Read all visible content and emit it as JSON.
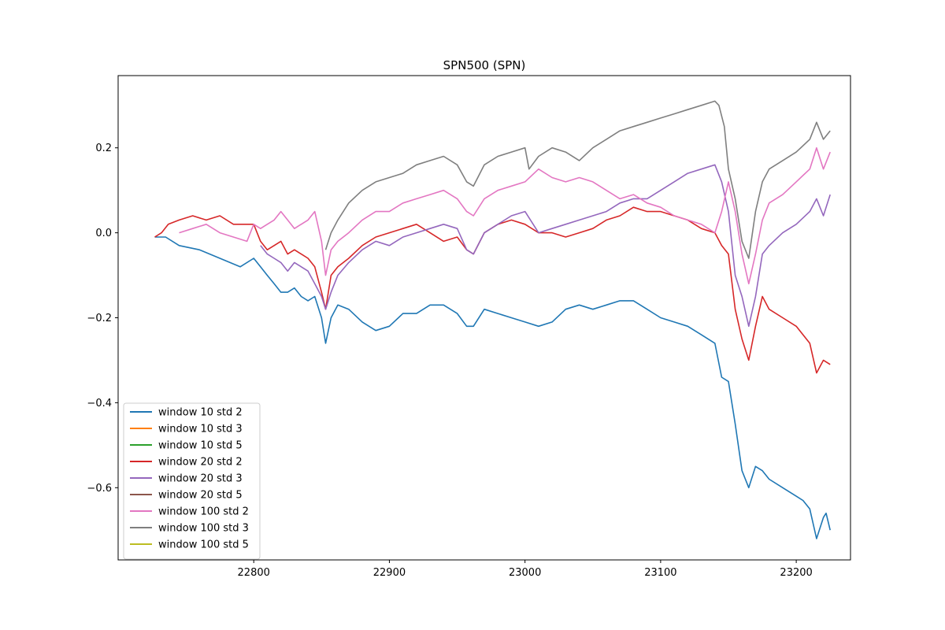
{
  "chart_data": {
    "type": "line",
    "title": "SPN500 (SPN)",
    "xlabel": "",
    "ylabel": "",
    "xlim": [
      22700,
      23240
    ],
    "ylim": [
      -0.77,
      0.37
    ],
    "xticks": [
      22800,
      22900,
      23000,
      23100,
      23200
    ],
    "yticks": [
      -0.6,
      -0.4,
      -0.2,
      0.0,
      0.2
    ],
    "ytick_labels": [
      "−0.6",
      "−0.4",
      "−0.2",
      "0.0",
      "0.2"
    ],
    "grid": false,
    "legend_position": "lower-left",
    "series": [
      {
        "name": "window 10 std 2",
        "color": "#1f77b4",
        "x": [
          22727,
          22735,
          22745,
          22760,
          22775,
          22790,
          22800,
          22805,
          22810,
          22815,
          22820,
          22825,
          22830,
          22835,
          22840,
          22845,
          22850,
          22853,
          22857,
          22862,
          22870,
          22880,
          22890,
          22900,
          22910,
          22920,
          22930,
          22940,
          22950,
          22957,
          22962,
          22970,
          22980,
          22990,
          23000,
          23010,
          23020,
          23030,
          23040,
          23050,
          23060,
          23070,
          23080,
          23090,
          23100,
          23110,
          23120,
          23130,
          23140,
          23145,
          23150,
          23155,
          23160,
          23165,
          23170,
          23175,
          23180,
          23190,
          23200,
          23205,
          23210,
          23215,
          23220,
          23222,
          23225
        ],
        "values": [
          -0.01,
          -0.01,
          -0.03,
          -0.04,
          -0.06,
          -0.08,
          -0.06,
          -0.08,
          -0.1,
          -0.12,
          -0.14,
          -0.14,
          -0.13,
          -0.15,
          -0.16,
          -0.15,
          -0.2,
          -0.26,
          -0.2,
          -0.17,
          -0.18,
          -0.21,
          -0.23,
          -0.22,
          -0.19,
          -0.19,
          -0.17,
          -0.17,
          -0.19,
          -0.22,
          -0.22,
          -0.18,
          -0.19,
          -0.2,
          -0.21,
          -0.22,
          -0.21,
          -0.18,
          -0.17,
          -0.18,
          -0.17,
          -0.16,
          -0.16,
          -0.18,
          -0.2,
          -0.21,
          -0.22,
          -0.24,
          -0.26,
          -0.34,
          -0.35,
          -0.45,
          -0.56,
          -0.6,
          -0.55,
          -0.56,
          -0.58,
          -0.6,
          -0.62,
          -0.63,
          -0.65,
          -0.72,
          -0.67,
          -0.66,
          -0.7
        ]
      },
      {
        "name": "window 10 std 3",
        "color": "#ff7f0e",
        "x": [],
        "values": []
      },
      {
        "name": "window 10 std 5",
        "color": "#2ca02c",
        "x": [],
        "values": []
      },
      {
        "name": "window 20 std 2",
        "color": "#d62728",
        "x": [
          22727,
          22732,
          22737,
          22745,
          22755,
          22765,
          22775,
          22785,
          22795,
          22800,
          22805,
          22810,
          22815,
          22820,
          22825,
          22830,
          22835,
          22840,
          22845,
          22850,
          22853,
          22857,
          22862,
          22870,
          22880,
          22890,
          22900,
          22910,
          22920,
          22930,
          22940,
          22950,
          22957,
          22962,
          22970,
          22980,
          22990,
          23000,
          23010,
          23020,
          23030,
          23040,
          23050,
          23060,
          23070,
          23080,
          23090,
          23100,
          23110,
          23120,
          23130,
          23140,
          23145,
          23150,
          23155,
          23160,
          23165,
          23170,
          23175,
          23180,
          23190,
          23200,
          23210,
          23215,
          23220,
          23225
        ],
        "values": [
          -0.01,
          0.0,
          0.02,
          0.03,
          0.04,
          0.03,
          0.04,
          0.02,
          0.02,
          0.02,
          -0.02,
          -0.04,
          -0.03,
          -0.02,
          -0.05,
          -0.04,
          -0.05,
          -0.06,
          -0.08,
          -0.14,
          -0.18,
          -0.1,
          -0.08,
          -0.06,
          -0.03,
          -0.01,
          0.0,
          0.01,
          0.02,
          0.0,
          -0.02,
          -0.01,
          -0.04,
          -0.05,
          0.0,
          0.02,
          0.03,
          0.02,
          0.0,
          0.0,
          -0.01,
          0.0,
          0.01,
          0.03,
          0.04,
          0.06,
          0.05,
          0.05,
          0.04,
          0.03,
          0.01,
          0.0,
          -0.03,
          -0.05,
          -0.18,
          -0.25,
          -0.3,
          -0.22,
          -0.15,
          -0.18,
          -0.2,
          -0.22,
          -0.26,
          -0.33,
          -0.3,
          -0.31
        ]
      },
      {
        "name": "window 20 std 3",
        "color": "#9467bd",
        "x": [
          22805,
          22810,
          22815,
          22820,
          22825,
          22830,
          22835,
          22840,
          22845,
          22850,
          22853,
          22857,
          22862,
          22870,
          22880,
          22890,
          22900,
          22910,
          22920,
          22930,
          22940,
          22950,
          22957,
          22962,
          22970,
          22980,
          22990,
          23000,
          23010,
          23020,
          23030,
          23040,
          23050,
          23060,
          23070,
          23080,
          23090,
          23100,
          23110,
          23120,
          23130,
          23140,
          23145,
          23150,
          23155,
          23160,
          23165,
          23170,
          23175,
          23180,
          23190,
          23200,
          23210,
          23215,
          23220,
          23225
        ],
        "values": [
          -0.03,
          -0.05,
          -0.06,
          -0.07,
          -0.09,
          -0.07,
          -0.08,
          -0.09,
          -0.12,
          -0.15,
          -0.18,
          -0.14,
          -0.1,
          -0.07,
          -0.04,
          -0.02,
          -0.03,
          -0.01,
          0.0,
          0.01,
          0.02,
          0.01,
          -0.04,
          -0.05,
          0.0,
          0.02,
          0.04,
          0.05,
          0.0,
          0.01,
          0.02,
          0.03,
          0.04,
          0.05,
          0.07,
          0.08,
          0.08,
          0.1,
          0.12,
          0.14,
          0.15,
          0.16,
          0.12,
          0.05,
          -0.1,
          -0.15,
          -0.22,
          -0.15,
          -0.05,
          -0.03,
          0.0,
          0.02,
          0.05,
          0.08,
          0.04,
          0.09
        ]
      },
      {
        "name": "window 20 std 5",
        "color": "#8c564b",
        "x": [],
        "values": []
      },
      {
        "name": "window 100 std 2",
        "color": "#e377c2",
        "x": [
          22745,
          22755,
          22765,
          22775,
          22785,
          22795,
          22800,
          22805,
          22810,
          22815,
          22820,
          22825,
          22830,
          22835,
          22840,
          22845,
          22850,
          22853,
          22857,
          22862,
          22870,
          22880,
          22890,
          22900,
          22910,
          22920,
          22930,
          22940,
          22950,
          22957,
          22962,
          22970,
          22980,
          22990,
          23000,
          23010,
          23020,
          23030,
          23040,
          23050,
          23060,
          23070,
          23080,
          23090,
          23100,
          23110,
          23120,
          23130,
          23140,
          23145,
          23150,
          23155,
          23160,
          23165,
          23170,
          23175,
          23180,
          23190,
          23200,
          23210,
          23215,
          23220,
          23225
        ],
        "values": [
          0.0,
          0.01,
          0.02,
          0.0,
          -0.01,
          -0.02,
          0.02,
          0.01,
          0.02,
          0.03,
          0.05,
          0.03,
          0.01,
          0.02,
          0.03,
          0.05,
          -0.02,
          -0.1,
          -0.04,
          -0.02,
          0.0,
          0.03,
          0.05,
          0.05,
          0.07,
          0.08,
          0.09,
          0.1,
          0.08,
          0.05,
          0.04,
          0.08,
          0.1,
          0.11,
          0.12,
          0.15,
          0.13,
          0.12,
          0.13,
          0.12,
          0.1,
          0.08,
          0.09,
          0.07,
          0.06,
          0.04,
          0.03,
          0.02,
          0.0,
          0.05,
          0.12,
          0.05,
          -0.05,
          -0.12,
          -0.05,
          0.03,
          0.07,
          0.09,
          0.12,
          0.15,
          0.2,
          0.15,
          0.19
        ]
      },
      {
        "name": "window 100 std 3",
        "color": "#7f7f7f",
        "x": [
          22853,
          22857,
          22862,
          22870,
          22880,
          22890,
          22900,
          22910,
          22920,
          22930,
          22940,
          22950,
          22957,
          22962,
          22970,
          22980,
          22990,
          23000,
          23003,
          23010,
          23020,
          23030,
          23040,
          23050,
          23060,
          23070,
          23080,
          23090,
          23100,
          23110,
          23120,
          23130,
          23140,
          23143,
          23147,
          23150,
          23155,
          23160,
          23165,
          23170,
          23175,
          23180,
          23190,
          23200,
          23210,
          23215,
          23220,
          23225
        ],
        "values": [
          -0.04,
          0.0,
          0.03,
          0.07,
          0.1,
          0.12,
          0.13,
          0.14,
          0.16,
          0.17,
          0.18,
          0.16,
          0.12,
          0.11,
          0.16,
          0.18,
          0.19,
          0.2,
          0.15,
          0.18,
          0.2,
          0.19,
          0.17,
          0.2,
          0.22,
          0.24,
          0.25,
          0.26,
          0.27,
          0.28,
          0.29,
          0.3,
          0.31,
          0.3,
          0.25,
          0.15,
          0.08,
          -0.02,
          -0.06,
          0.05,
          0.12,
          0.15,
          0.17,
          0.19,
          0.22,
          0.26,
          0.22,
          0.24
        ]
      },
      {
        "name": "window 100 std 5",
        "color": "#bcbd22",
        "x": [],
        "values": []
      }
    ]
  }
}
